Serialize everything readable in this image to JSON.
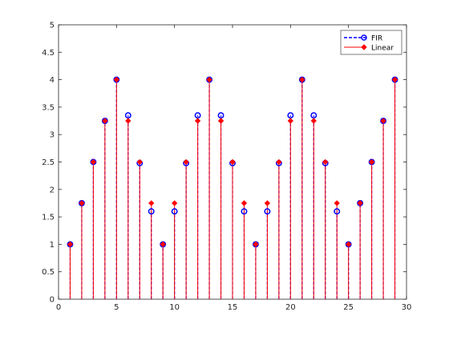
{
  "chart_data": {
    "type": "stem",
    "title": "",
    "xlabel": "",
    "ylabel": "",
    "xlim": [
      0,
      30
    ],
    "ylim": [
      0,
      5
    ],
    "xticks": [
      0,
      5,
      10,
      15,
      20,
      25,
      30
    ],
    "yticks": [
      0,
      0.5,
      1,
      1.5,
      2,
      2.5,
      3,
      3.5,
      4,
      4.5,
      5
    ],
    "grid": false,
    "legend_position": "top-right",
    "x": [
      1,
      2,
      3,
      4,
      5,
      6,
      7,
      8,
      9,
      10,
      11,
      12,
      13,
      14,
      15,
      16,
      17,
      18,
      19,
      20,
      21,
      22,
      23,
      24,
      25,
      26,
      27,
      28,
      29
    ],
    "series": [
      {
        "name": "FIR",
        "color": "#0000ff",
        "line_style": "dashed",
        "marker": "open-circle",
        "values": [
          1,
          1.75,
          2.5,
          3.25,
          4,
          3.35,
          2.48,
          1.6,
          1,
          1.6,
          2.48,
          3.35,
          4,
          3.35,
          2.48,
          1.6,
          1,
          1.6,
          2.48,
          3.35,
          4,
          3.35,
          2.48,
          1.6,
          1,
          1.75,
          2.5,
          3.25,
          4
        ]
      },
      {
        "name": "Linear",
        "color": "#ff0000",
        "line_style": "solid",
        "marker": "filled-diamond",
        "values": [
          1,
          1.75,
          2.5,
          3.25,
          4,
          3.25,
          2.5,
          1.75,
          1,
          1.75,
          2.5,
          3.25,
          4,
          3.25,
          2.5,
          1.75,
          1,
          1.75,
          2.5,
          3.25,
          4,
          3.25,
          2.5,
          1.75,
          1,
          1.75,
          2.5,
          3.25,
          4
        ]
      }
    ]
  }
}
